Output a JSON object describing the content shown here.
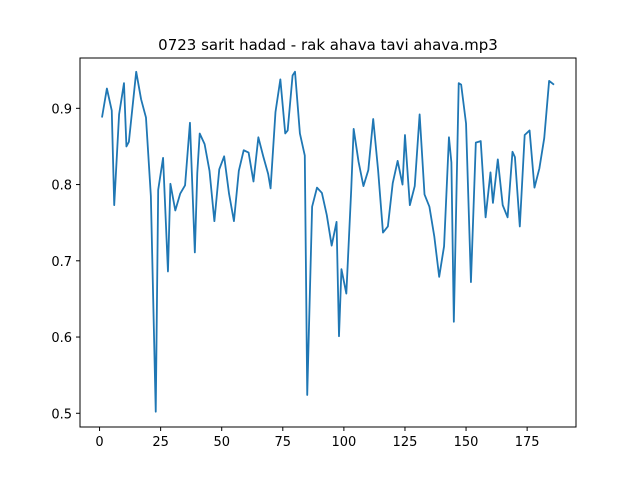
{
  "chart_data": {
    "type": "line",
    "title": "0723 sarit hadad - rak ahava tavi ahava.mp3",
    "xlabel": "",
    "ylabel": "",
    "xlim": [
      -8,
      195
    ],
    "ylim": [
      0.482,
      0.966
    ],
    "xticks": [
      0,
      25,
      50,
      75,
      100,
      125,
      150,
      175
    ],
    "yticks": [
      0.5,
      0.6,
      0.7,
      0.8,
      0.9
    ],
    "ytick_labels": [
      "0.5",
      "0.6",
      "0.7",
      "0.8",
      "0.9"
    ],
    "grid": false,
    "line_color": "#1f77b4",
    "series": [
      {
        "x": [
          1,
          3,
          5,
          6,
          8,
          10,
          11,
          12,
          15,
          17,
          19,
          21,
          23,
          24,
          26,
          28,
          29,
          31,
          33,
          35,
          37,
          39,
          40,
          41,
          43,
          45,
          47,
          49,
          51,
          53,
          55,
          57,
          59,
          61,
          63,
          65,
          67,
          69,
          70,
          72,
          74,
          76,
          77,
          79,
          80,
          82,
          84,
          85,
          87,
          89,
          91,
          93,
          95,
          97,
          98,
          99,
          101,
          103,
          104,
          106,
          108,
          110,
          112,
          114,
          116,
          118,
          120,
          122,
          124,
          125,
          127,
          129,
          131,
          133,
          135,
          137,
          139,
          141,
          143,
          144,
          145,
          147,
          148,
          150,
          152,
          154,
          156,
          158,
          160,
          161,
          163,
          165,
          167,
          169,
          170,
          172,
          174,
          176,
          178,
          180,
          182,
          184,
          186
        ],
        "y": [
          0.888,
          0.926,
          0.897,
          0.773,
          0.892,
          0.933,
          0.85,
          0.856,
          0.948,
          0.912,
          0.888,
          0.785,
          0.502,
          0.793,
          0.835,
          0.686,
          0.801,
          0.766,
          0.788,
          0.799,
          0.881,
          0.711,
          0.815,
          0.867,
          0.853,
          0.818,
          0.752,
          0.82,
          0.837,
          0.788,
          0.752,
          0.818,
          0.845,
          0.842,
          0.804,
          0.862,
          0.837,
          0.814,
          0.795,
          0.895,
          0.938,
          0.867,
          0.871,
          0.943,
          0.948,
          0.867,
          0.838,
          0.524,
          0.771,
          0.796,
          0.789,
          0.76,
          0.72,
          0.751,
          0.601,
          0.689,
          0.657,
          0.793,
          0.873,
          0.83,
          0.798,
          0.819,
          0.886,
          0.819,
          0.737,
          0.745,
          0.802,
          0.831,
          0.8,
          0.865,
          0.773,
          0.798,
          0.892,
          0.787,
          0.771,
          0.732,
          0.679,
          0.719,
          0.862,
          0.829,
          0.62,
          0.933,
          0.931,
          0.88,
          0.672,
          0.855,
          0.857,
          0.757,
          0.816,
          0.776,
          0.833,
          0.773,
          0.757,
          0.843,
          0.836,
          0.745,
          0.865,
          0.871,
          0.796,
          0.821,
          0.861,
          0.936,
          0.931
        ]
      }
    ]
  }
}
